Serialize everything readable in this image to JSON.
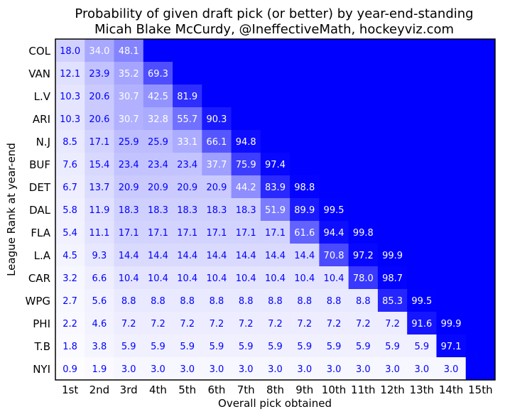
{
  "chart_data": {
    "type": "heatmap",
    "title": "Probability of given draft pick (or better) by year-end-standing",
    "subtitle": "Micah Blake McCurdy, @IneffectiveMath, hockeyviz.com",
    "xlabel": "Overall pick obtained",
    "ylabel": "League Rank at year-end",
    "x_categories": [
      "1st",
      "2nd",
      "3rd",
      "4th",
      "5th",
      "6th",
      "7th",
      "8th",
      "9th",
      "10th",
      "11th",
      "12th",
      "13th",
      "14th",
      "15th"
    ],
    "y_categories": [
      "COL",
      "VAN",
      "L.V",
      "ARI",
      "N.J",
      "BUF",
      "DET",
      "DAL",
      "FLA",
      "L.A",
      "CAR",
      "WPG",
      "PHI",
      "T.B",
      "NYI"
    ],
    "unlabeled_value": 100,
    "values": [
      [
        18.0,
        34.0,
        48.1
      ],
      [
        12.1,
        23.9,
        35.2,
        69.3
      ],
      [
        10.3,
        20.6,
        30.7,
        42.5,
        81.9
      ],
      [
        10.3,
        20.6,
        30.7,
        32.8,
        55.7,
        90.3
      ],
      [
        8.5,
        17.1,
        25.9,
        25.9,
        33.1,
        66.1,
        94.8
      ],
      [
        7.6,
        15.4,
        23.4,
        23.4,
        23.4,
        37.7,
        75.9,
        97.4
      ],
      [
        6.7,
        13.7,
        20.9,
        20.9,
        20.9,
        20.9,
        44.2,
        83.9,
        98.8
      ],
      [
        5.8,
        11.9,
        18.3,
        18.3,
        18.3,
        18.3,
        18.3,
        51.9,
        89.9,
        99.5
      ],
      [
        5.4,
        11.1,
        17.1,
        17.1,
        17.1,
        17.1,
        17.1,
        17.1,
        61.6,
        94.4,
        99.8
      ],
      [
        4.5,
        9.3,
        14.4,
        14.4,
        14.4,
        14.4,
        14.4,
        14.4,
        14.4,
        70.8,
        97.2,
        99.9
      ],
      [
        3.2,
        6.6,
        10.4,
        10.4,
        10.4,
        10.4,
        10.4,
        10.4,
        10.4,
        10.4,
        78.0,
        98.7
      ],
      [
        2.7,
        5.6,
        8.8,
        8.8,
        8.8,
        8.8,
        8.8,
        8.8,
        8.8,
        8.8,
        8.8,
        85.3,
        99.5
      ],
      [
        2.2,
        4.6,
        7.2,
        7.2,
        7.2,
        7.2,
        7.2,
        7.2,
        7.2,
        7.2,
        7.2,
        7.2,
        91.6,
        99.9
      ],
      [
        1.8,
        3.8,
        5.9,
        5.9,
        5.9,
        5.9,
        5.9,
        5.9,
        5.9,
        5.9,
        5.9,
        5.9,
        5.9,
        97.1
      ],
      [
        0.9,
        1.9,
        3.0,
        3.0,
        3.0,
        3.0,
        3.0,
        3.0,
        3.0,
        3.0,
        3.0,
        3.0,
        3.0,
        3.0
      ]
    ],
    "colorscale": {
      "low": "#ffffff",
      "high": "#0000ff"
    },
    "label_colors": {
      "dark_cell": "#ffffff",
      "light_cell": "#0000ff"
    },
    "vrange": [
      0,
      100
    ]
  }
}
